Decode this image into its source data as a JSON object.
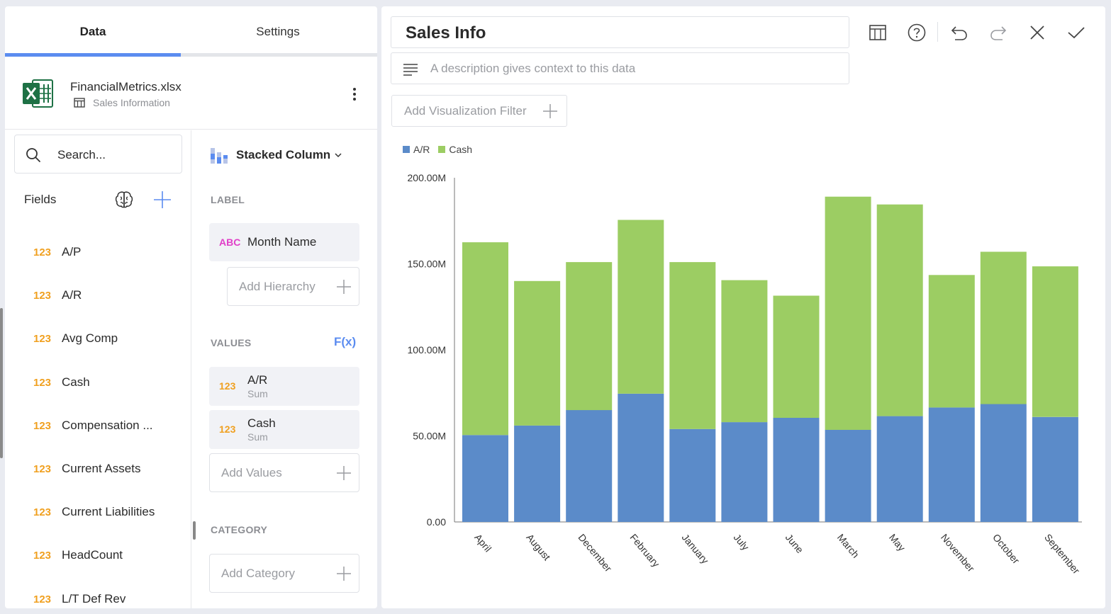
{
  "tabs": {
    "data": "Data",
    "settings": "Settings"
  },
  "source": {
    "file_name": "FinancialMetrics.xlsx",
    "sheet_name": "Sales Information"
  },
  "search": {
    "placeholder": "Search..."
  },
  "fields": {
    "title": "Fields",
    "type_tag": "123",
    "items": [
      "A/P",
      "A/R",
      "Avg Comp",
      "Cash",
      "Compensation ...",
      "Current Assets",
      "Current Liabilities",
      "HeadCount",
      "L/T Def Rev"
    ]
  },
  "config": {
    "viz_type": "Stacked Column",
    "label_section": "LABEL",
    "label_field": {
      "tag": "ABC",
      "name": "Month Name"
    },
    "add_hierarchy": "Add Hierarchy",
    "values_section": "VALUES",
    "fx": "F(x)",
    "values": [
      {
        "tag": "123",
        "name": "A/R",
        "agg": "Sum"
      },
      {
        "tag": "123",
        "name": "Cash",
        "agg": "Sum"
      }
    ],
    "add_values": "Add Values",
    "category_section": "CATEGORY",
    "add_category": "Add Category"
  },
  "widget": {
    "title": "Sales Info",
    "description_placeholder": "A description gives context to this data",
    "add_filter": "Add Visualization Filter"
  },
  "colors": {
    "ar": "#5b8bc9",
    "cash": "#9ccd63",
    "accent": "#5b8cf0",
    "number_tag": "#f0a020",
    "text_tag": "#e040c8"
  },
  "chart_data": {
    "type": "bar",
    "stacked": true,
    "categories": [
      "April",
      "August",
      "December",
      "February",
      "January",
      "July",
      "June",
      "March",
      "May",
      "November",
      "October",
      "September"
    ],
    "series": [
      {
        "name": "A/R",
        "values": [
          50.5,
          56,
          65,
          74.5,
          54,
          58,
          60.5,
          53.5,
          61.5,
          66.5,
          68.5,
          61
        ]
      },
      {
        "name": "Cash",
        "values": [
          112,
          84,
          86,
          101,
          97,
          82.5,
          71,
          135.5,
          123,
          77,
          88.5,
          87.5
        ]
      }
    ],
    "y_ticks": [
      "0.00",
      "50.00M",
      "100.00M",
      "150.00M",
      "200.00M"
    ],
    "ylim": [
      0,
      200
    ],
    "legend_position": "top-left"
  }
}
